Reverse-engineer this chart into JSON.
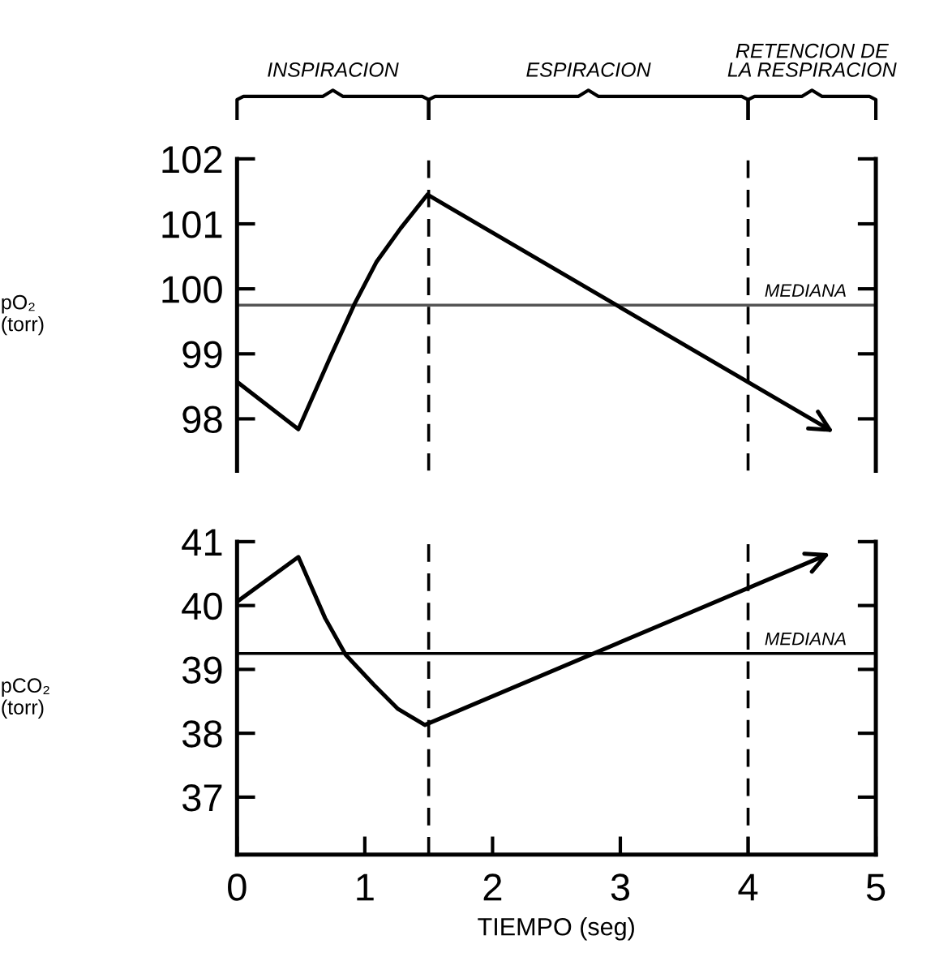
{
  "chart_data": [
    {
      "type": "line",
      "ylabel": "pO₂\n(torr)",
      "xlim": [
        0,
        5
      ],
      "ylim": [
        97.2,
        102
      ],
      "yticks": [
        98,
        99,
        100,
        101,
        102
      ],
      "tick_labels": "y",
      "grid": false,
      "legend": false,
      "marker": "none",
      "line_style": "solid",
      "annotations": [
        "INSPIRACION",
        "ESPIRACION",
        "RETENCION DE\nLA RESPIRACION"
      ],
      "ref_lines": [
        {
          "axis": "y",
          "value": 99.75,
          "label": "MEDIANA",
          "color": "#555555",
          "line_style": "solid"
        },
        {
          "axis": "x",
          "value": 1.5,
          "label": null,
          "color": "#000000",
          "line_style": "dashed"
        },
        {
          "axis": "x",
          "value": 4,
          "label": null,
          "color": "#000000",
          "line_style": "dashed"
        }
      ],
      "series": [
        {
          "color": "#000000",
          "x": [
            0,
            0.48,
            0.73,
            0.92,
            1.09,
            1.28,
            1.49,
            4.64
          ],
          "values": [
            98.57,
            97.84,
            98.95,
            99.77,
            100.41,
            100.93,
            101.45,
            97.83
          ]
        }
      ]
    },
    {
      "type": "line",
      "ylabel": "pCO₂\n(torr)",
      "xlabel": "TIEMPO (seg)",
      "xlim": [
        0,
        5
      ],
      "ylim": [
        36.1,
        41
      ],
      "xticks": [
        0,
        1,
        2,
        3,
        4,
        5
      ],
      "yticks": [
        37,
        38,
        39,
        40,
        41
      ],
      "grid": false,
      "legend": false,
      "marker": "none",
      "line_style": "solid",
      "ref_lines": [
        {
          "axis": "y",
          "value": 39.25,
          "label": "MEDIANA",
          "color": "#000000",
          "line_style": "solid"
        },
        {
          "axis": "x",
          "value": 1.5,
          "label": null,
          "color": "#000000",
          "line_style": "dashed"
        },
        {
          "axis": "x",
          "value": 4,
          "label": null,
          "color": "#000000",
          "line_style": "dashed"
        }
      ],
      "series": [
        {
          "color": "#000000",
          "x": [
            0,
            0.48,
            0.69,
            0.85,
            1.07,
            1.26,
            1.47,
            4.61
          ],
          "values": [
            40.06,
            40.76,
            39.8,
            39.23,
            38.76,
            38.38,
            38.13,
            40.79
          ]
        }
      ]
    }
  ]
}
